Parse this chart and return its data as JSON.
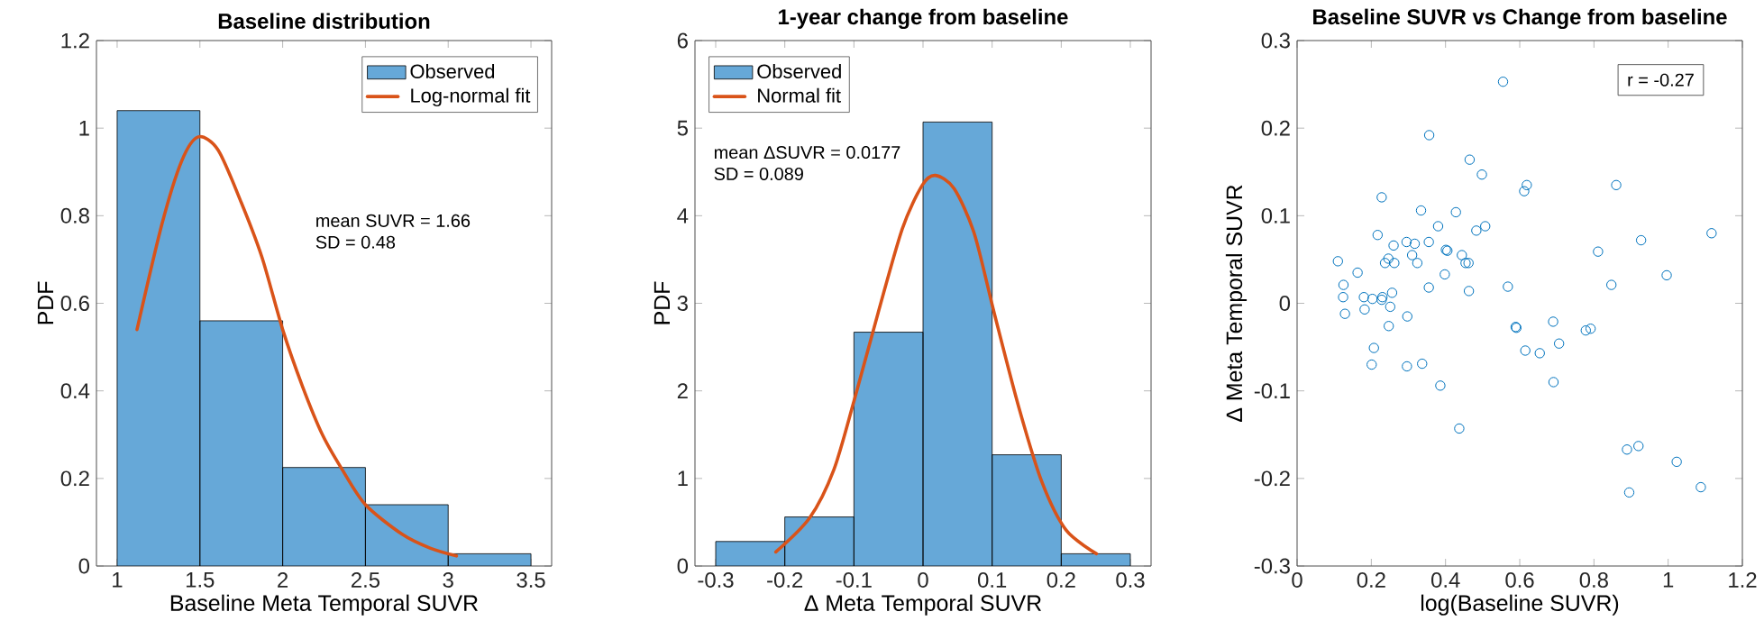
{
  "chart_data": [
    {
      "type": "histogram",
      "title": "Baseline distribution",
      "xlabel": "Baseline Meta Temporal SUVR",
      "ylabel": "PDF",
      "bins": [
        1,
        1.5,
        2,
        2.5,
        3,
        3.5
      ],
      "series": [
        {
          "name": "Observed",
          "color": "#66a8d8",
          "values": [
            1.04,
            0.56,
            0.225,
            0.14,
            0.028
          ]
        },
        {
          "name": "Log-normal fit",
          "type": "line",
          "color": "#d95319",
          "x": [
            1.12,
            1.27,
            1.39,
            1.49,
            1.61,
            1.75,
            1.875,
            2.0,
            2.12,
            2.24,
            2.36,
            2.5,
            2.72,
            2.89,
            3.05
          ],
          "values": [
            0.54,
            0.78,
            0.925,
            0.98,
            0.95,
            0.83,
            0.705,
            0.54,
            0.41,
            0.3,
            0.22,
            0.14,
            0.073,
            0.041,
            0.023
          ]
        }
      ],
      "xlim": [
        0.875,
        3.625
      ],
      "xticks": [
        1,
        1.5,
        2,
        2.5,
        3,
        3.5
      ],
      "ylim": [
        0,
        1.2
      ],
      "yticks": [
        0,
        0.2,
        0.4,
        0.6,
        0.8,
        1,
        1.2
      ],
      "annotations": [
        "mean SUVR = 1.66",
        "SD = 0.48"
      ],
      "legend": "top right",
      "grid": false
    },
    {
      "type": "histogram",
      "title": "1-year change from baseline",
      "xlabel": "Δ Meta Temporal SUVR",
      "ylabel": "PDF",
      "bins": [
        -0.3,
        -0.2,
        -0.1,
        0,
        0.1,
        0.2,
        0.3
      ],
      "series": [
        {
          "name": "Observed",
          "color": "#66a8d8",
          "values": [
            0.28,
            0.56,
            2.67,
            5.07,
            1.27,
            0.14
          ]
        },
        {
          "name": "Normal fit",
          "type": "line",
          "color": "#d95319",
          "x": [
            -0.213,
            -0.164,
            -0.129,
            -0.1,
            -0.065,
            -0.03,
            -0.001,
            0.018,
            0.045,
            0.074,
            0.103,
            0.138,
            0.172,
            0.207,
            0.251
          ],
          "values": [
            0.16,
            0.55,
            1.1,
            1.88,
            2.89,
            3.85,
            4.35,
            4.46,
            4.31,
            3.8,
            2.89,
            1.83,
            0.96,
            0.41,
            0.14
          ]
        }
      ],
      "xlim": [
        -0.33,
        0.33
      ],
      "xticks": [
        -0.3,
        -0.2,
        -0.1,
        0,
        0.1,
        0.2,
        0.3
      ],
      "ylim": [
        0,
        6
      ],
      "yticks": [
        0,
        1,
        2,
        3,
        4,
        5,
        6
      ],
      "annotations": [
        "mean ΔSUVR = 0.0177",
        "SD = 0.089"
      ],
      "legend": "top left",
      "grid": false
    },
    {
      "type": "scatter",
      "title": "Baseline SUVR vs Change from baseline",
      "xlabel": "log(Baseline SUVR)",
      "ylabel": "Δ Meta Temporal SUVR",
      "x": [
        0.356,
        0.465,
        0.228,
        0.334,
        0.428,
        0.38,
        0.483,
        0.217,
        0.295,
        0.317,
        0.355,
        0.26,
        0.401,
        0.405,
        0.31,
        0.444,
        0.11,
        0.246,
        0.237,
        0.262,
        0.324,
        0.454,
        0.462,
        0.163,
        0.398,
        0.125,
        0.355,
        0.463,
        0.124,
        0.18,
        0.203,
        0.23,
        0.228,
        0.256,
        0.129,
        0.182,
        0.251,
        0.297,
        0.247,
        0.207,
        0.201,
        0.296,
        0.337,
        0.386,
        0.437,
        0.555,
        0.498,
        0.619,
        0.612,
        0.86,
        0.507,
        1.117,
        0.927,
        0.811,
        0.996,
        0.568,
        0.847,
        0.589,
        0.591,
        0.69,
        0.706,
        0.615,
        0.654,
        0.778,
        0.791,
        0.691,
        0.889,
        0.92,
        1.023,
        0.895,
        1.088
      ],
      "values": [
        0.192,
        0.164,
        0.121,
        0.106,
        0.104,
        0.088,
        0.083,
        0.078,
        0.07,
        0.068,
        0.07,
        0.066,
        0.061,
        0.06,
        0.055,
        0.055,
        0.048,
        0.051,
        0.046,
        0.046,
        0.046,
        0.046,
        0.046,
        0.035,
        0.033,
        0.021,
        0.018,
        0.014,
        0.007,
        0.007,
        0.005,
        0.007,
        0.004,
        0.012,
        -0.012,
        -0.007,
        -0.004,
        -0.015,
        -0.026,
        -0.051,
        -0.07,
        -0.072,
        -0.069,
        -0.094,
        -0.143,
        0.253,
        0.147,
        0.135,
        0.128,
        0.135,
        0.088,
        0.08,
        0.072,
        0.059,
        0.032,
        0.019,
        0.021,
        -0.027,
        -0.028,
        -0.021,
        -0.046,
        -0.054,
        -0.057,
        -0.031,
        -0.029,
        -0.09,
        -0.167,
        -0.163,
        -0.181,
        -0.216,
        -0.21
      ],
      "color": "#0072bd",
      "marker": "circle",
      "xlim": [
        0,
        1.2
      ],
      "xticks": [
        0,
        0.2,
        0.4,
        0.6,
        0.8,
        1,
        1.2
      ],
      "ylim": [
        -0.3,
        0.3
      ],
      "yticks": [
        -0.3,
        -0.2,
        -0.1,
        0,
        0.1,
        0.2,
        0.3
      ],
      "annotations": [
        "r = -0.27"
      ],
      "grid": false
    }
  ]
}
